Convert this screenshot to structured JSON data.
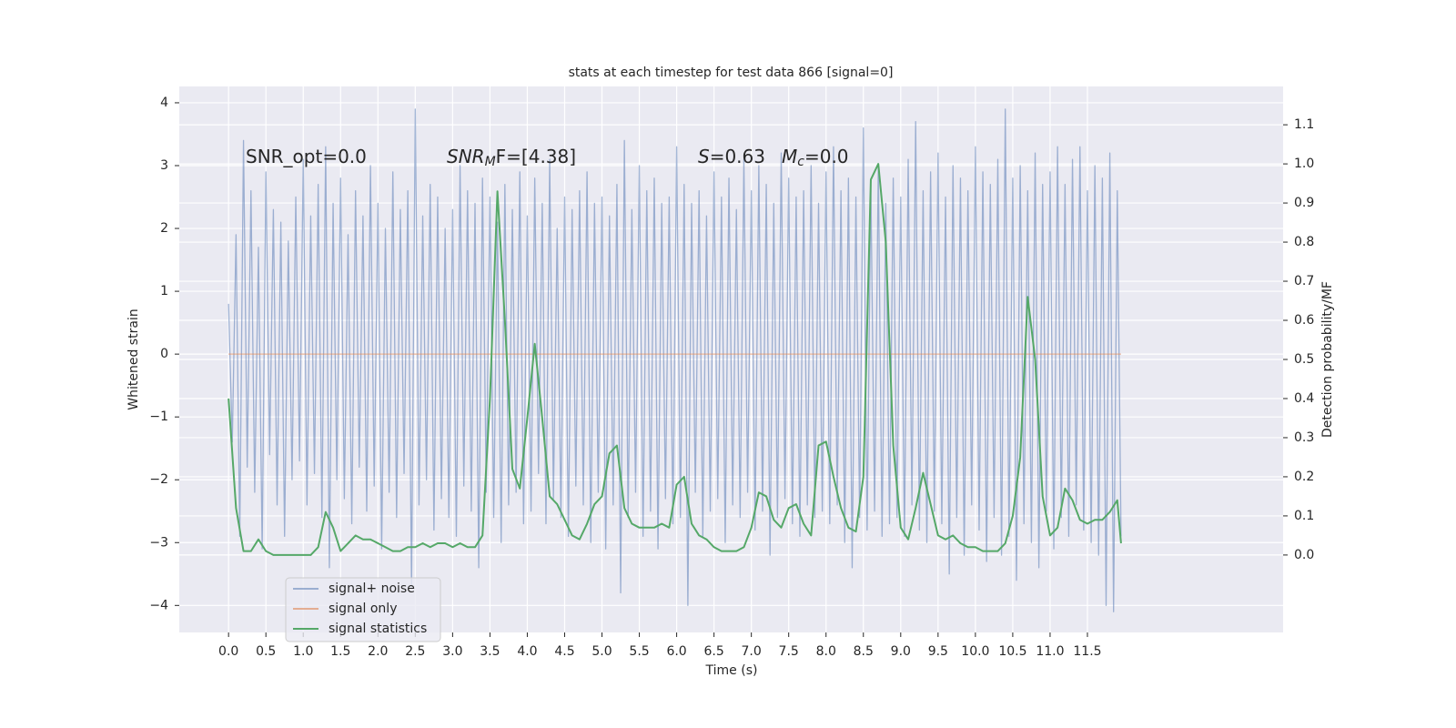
{
  "chart_data": {
    "type": "line",
    "title": "stats at each timestep for test data 866 [signal=0]",
    "xlabel": "Time (s)",
    "ylabel": "Whitened strain",
    "y2label": "Detection probability/MF",
    "xlim": [
      -0.66,
      14.12
    ],
    "ylim": [
      -4.43,
      4.26
    ],
    "y2lim": [
      -0.198,
      1.198
    ],
    "grid": true,
    "background": "#eaeaf2",
    "legend": "lower left",
    "xticks": [
      {
        "value": 0,
        "label": "0.0"
      },
      {
        "value": 0.5,
        "label": "0.5"
      },
      {
        "value": 1,
        "label": "1.0"
      },
      {
        "value": 1.5,
        "label": "1.5"
      },
      {
        "value": 2,
        "label": "2.0"
      },
      {
        "value": 2.5,
        "label": "2.5"
      },
      {
        "value": 3,
        "label": "3.0"
      },
      {
        "value": 3.5,
        "label": "3.5"
      },
      {
        "value": 4,
        "label": "4.0"
      },
      {
        "value": 4.5,
        "label": "4.5"
      },
      {
        "value": 5,
        "label": "5.0"
      },
      {
        "value": 5.5,
        "label": "5.5"
      },
      {
        "value": 6,
        "label": "6.0"
      },
      {
        "value": 6.5,
        "label": "6.5"
      },
      {
        "value": 7,
        "label": "7.0"
      },
      {
        "value": 7.5,
        "label": "7.5"
      },
      {
        "value": 8,
        "label": "8.0"
      },
      {
        "value": 8.5,
        "label": "8.5"
      },
      {
        "value": 9,
        "label": "9.0"
      },
      {
        "value": 9.5,
        "label": "9.5"
      },
      {
        "value": 10,
        "label": "10.0"
      },
      {
        "value": 10.5,
        "label": "10.5"
      },
      {
        "value": 11,
        "label": "11.0"
      },
      {
        "value": 11.5,
        "label": "11.5"
      }
    ],
    "yticks": [
      {
        "value": -4,
        "label": "−4"
      },
      {
        "value": -3,
        "label": "−3"
      },
      {
        "value": -2,
        "label": "−2"
      },
      {
        "value": -1,
        "label": "−1"
      },
      0,
      1,
      2,
      3,
      4
    ],
    "y2ticks": [
      {
        "value": 0,
        "label": "0.0"
      },
      {
        "value": 0.1,
        "label": "0.1"
      },
      {
        "value": 0.2,
        "label": "0.2"
      },
      {
        "value": 0.3,
        "label": "0.3"
      },
      {
        "value": 0.4,
        "label": "0.4"
      },
      {
        "value": 0.5,
        "label": "0.5"
      },
      {
        "value": 0.6,
        "label": "0.6"
      },
      {
        "value": 0.7,
        "label": "0.7"
      },
      {
        "value": 0.8,
        "label": "0.8"
      },
      {
        "value": 0.9,
        "label": "0.9"
      },
      {
        "value": 1,
        "label": "1.0"
      },
      {
        "value": 1.1,
        "label": "1.1"
      }
    ],
    "annotations": [
      {
        "text": "SNR_opt=0.0"
      },
      {
        "base": "SNR",
        "sub": "M",
        "rest": "F=[4.38]"
      },
      {
        "base": "S",
        "rest": "=0.63"
      },
      {
        "base": "M",
        "sub": "c",
        "rest": "=0.0"
      }
    ],
    "series": [
      {
        "name": "signal+ noise",
        "color": "#4c72b0",
        "opacity": 0.5,
        "x": [
          0,
          0.05,
          0.1,
          0.15,
          0.2,
          0.25,
          0.3,
          0.35,
          0.4,
          0.45,
          0.5,
          0.55,
          0.6,
          0.65,
          0.7,
          0.75,
          0.8,
          0.85,
          0.9,
          0.95,
          1,
          1.05,
          1.1,
          1.15,
          1.2,
          1.25,
          1.3,
          1.35,
          1.4,
          1.45,
          1.5,
          1.55,
          1.6,
          1.65,
          1.7,
          1.75,
          1.8,
          1.85,
          1.9,
          1.95,
          2,
          2.05,
          2.1,
          2.15,
          2.2,
          2.25,
          2.3,
          2.35,
          2.4,
          2.45,
          2.5,
          2.55,
          2.6,
          2.65,
          2.7,
          2.75,
          2.8,
          2.85,
          2.9,
          2.95,
          3,
          3.05,
          3.1,
          3.15,
          3.2,
          3.25,
          3.3,
          3.35,
          3.4,
          3.45,
          3.5,
          3.55,
          3.6,
          3.65,
          3.7,
          3.75,
          3.8,
          3.85,
          3.9,
          3.95,
          4,
          4.05,
          4.1,
          4.15,
          4.2,
          4.25,
          4.3,
          4.35,
          4.4,
          4.45,
          4.5,
          4.55,
          4.6,
          4.65,
          4.7,
          4.75,
          4.8,
          4.85,
          4.9,
          4.95,
          5,
          5.05,
          5.1,
          5.15,
          5.2,
          5.25,
          5.3,
          5.35,
          5.4,
          5.45,
          5.5,
          5.55,
          5.6,
          5.65,
          5.7,
          5.75,
          5.8,
          5.85,
          5.9,
          5.95,
          6,
          6.05,
          6.1,
          6.15,
          6.2,
          6.25,
          6.3,
          6.35,
          6.4,
          6.45,
          6.5,
          6.55,
          6.6,
          6.65,
          6.7,
          6.75,
          6.8,
          6.85,
          6.9,
          6.95,
          7,
          7.05,
          7.1,
          7.15,
          7.2,
          7.25,
          7.3,
          7.35,
          7.4,
          7.45,
          7.5,
          7.55,
          7.6,
          7.65,
          7.7,
          7.75,
          7.8,
          7.85,
          7.9,
          7.95,
          8,
          8.05,
          8.1,
          8.15,
          8.2,
          8.25,
          8.3,
          8.35,
          8.4,
          8.45,
          8.5,
          8.55,
          8.6,
          8.65,
          8.7,
          8.75,
          8.8,
          8.85,
          8.9,
          8.95,
          9,
          9.05,
          9.1,
          9.15,
          9.2,
          9.25,
          9.3,
          9.35,
          9.4,
          9.45,
          9.5,
          9.55,
          9.6,
          9.65,
          9.7,
          9.75,
          9.8,
          9.85,
          9.9,
          9.95,
          10,
          10.05,
          10.1,
          10.15,
          10.2,
          10.25,
          10.3,
          10.35,
          10.4,
          10.45,
          10.5,
          10.55,
          10.6,
          10.65,
          10.7,
          10.75,
          10.8,
          10.85,
          10.9,
          10.95,
          11,
          11.05,
          11.1,
          11.15,
          11.2,
          11.25,
          11.3,
          11.35,
          11.4,
          11.45,
          11.5,
          11.55,
          11.6,
          11.65,
          11.7,
          11.75,
          11.8,
          11.85,
          11.9,
          11.95
        ],
        "values": [
          0.8,
          -1.4,
          1.9,
          -2.9,
          3.4,
          -1.8,
          2.6,
          -2.2,
          1.7,
          -3.1,
          2.9,
          -1.6,
          2.3,
          -2.4,
          2.1,
          -2.9,
          1.8,
          -2.0,
          2.5,
          -1.7,
          3.1,
          -2.4,
          2.2,
          -1.9,
          2.7,
          -2.6,
          3.3,
          -3.4,
          2.4,
          -2.0,
          2.8,
          -2.3,
          1.9,
          -2.7,
          2.6,
          -1.8,
          2.2,
          -2.5,
          3.0,
          -2.1,
          2.4,
          -3.1,
          2.0,
          -2.2,
          2.9,
          -2.6,
          2.3,
          -1.9,
          2.6,
          -3.7,
          3.9,
          -2.4,
          2.2,
          -2.0,
          2.7,
          -2.8,
          2.5,
          -2.3,
          2.0,
          -2.6,
          2.3,
          -2.9,
          3.0,
          -2.1,
          2.6,
          -2.5,
          2.4,
          -3.4,
          2.8,
          -2.2,
          2.5,
          -2.6,
          2.1,
          -3.0,
          2.7,
          -2.4,
          2.3,
          -2.2,
          2.9,
          -2.7,
          2.2,
          -2.5,
          2.8,
          -1.9,
          2.4,
          -2.7,
          3.1,
          -2.3,
          2.0,
          -2.6,
          2.5,
          -2.9,
          2.3,
          -2.1,
          2.6,
          -2.4,
          2.9,
          -3.0,
          2.4,
          -2.2,
          2.5,
          -3.1,
          2.2,
          -2.4,
          2.7,
          -3.8,
          3.4,
          -2.6,
          2.3,
          -2.2,
          3.0,
          -2.9,
          2.6,
          -2.5,
          2.8,
          -3.1,
          2.4,
          -2.3,
          2.5,
          -2.7,
          3.3,
          -2.6,
          2.7,
          -4.0,
          2.4,
          -2.2,
          2.6,
          -2.9,
          2.2,
          -2.5,
          2.9,
          -2.3,
          2.5,
          -3.0,
          2.8,
          -2.4,
          2.3,
          -2.6,
          3.1,
          -2.2,
          2.6,
          -2.8,
          3.0,
          -2.5,
          2.7,
          -3.2,
          2.4,
          -2.6,
          3.2,
          -2.3,
          2.8,
          -2.7,
          2.5,
          -2.9,
          2.6,
          -2.4,
          3.0,
          -2.6,
          2.4,
          -2.5,
          2.9,
          -2.7,
          3.3,
          -2.4,
          2.6,
          -3.0,
          2.8,
          -3.4,
          2.5,
          -2.6,
          3.6,
          -2.8,
          2.7,
          -2.5,
          3.0,
          -2.9,
          2.4,
          -2.7,
          2.8,
          -2.6,
          2.5,
          -2.9,
          3.1,
          -2.4,
          3.7,
          -2.8,
          2.6,
          -3.0,
          2.9,
          -2.5,
          3.2,
          -2.7,
          2.5,
          -3.5,
          3.0,
          -2.6,
          2.8,
          -3.2,
          2.6,
          -2.4,
          3.3,
          -2.8,
          2.9,
          -3.3,
          2.7,
          -2.6,
          3.1,
          -3.2,
          3.9,
          -2.9,
          2.8,
          -3.6,
          3.0,
          -2.7,
          2.6,
          -3.0,
          3.2,
          -3.4,
          2.7,
          -2.5,
          2.9,
          -3.1,
          3.3,
          -2.6,
          2.7,
          -2.9,
          3.1,
          -2.4,
          3.3,
          -2.8,
          2.6,
          -3.0,
          3.0,
          -3.2,
          2.8,
          -4.0,
          3.2,
          -4.1,
          2.6,
          -2.9
        ]
      },
      {
        "name": "signal only",
        "color": "#dd8452",
        "opacity": 0.6,
        "x": [
          0,
          11.95
        ],
        "values": [
          0,
          0
        ]
      },
      {
        "name": "signal statistics",
        "color": "#55a868",
        "opacity": 1,
        "axis": "y2",
        "x": [
          0,
          0.1,
          0.2,
          0.3,
          0.4,
          0.5,
          0.6,
          0.7,
          0.8,
          0.9,
          1,
          1.1,
          1.2,
          1.3,
          1.4,
          1.5,
          1.6,
          1.7,
          1.8,
          1.9,
          2,
          2.1,
          2.2,
          2.3,
          2.4,
          2.5,
          2.6,
          2.7,
          2.8,
          2.9,
          3,
          3.1,
          3.2,
          3.3,
          3.4,
          3.5,
          3.6,
          3.7,
          3.8,
          3.9,
          4,
          4.1,
          4.2,
          4.3,
          4.4,
          4.5,
          4.6,
          4.7,
          4.8,
          4.9,
          5,
          5.1,
          5.2,
          5.3,
          5.4,
          5.5,
          5.6,
          5.7,
          5.8,
          5.9,
          6,
          6.1,
          6.2,
          6.3,
          6.4,
          6.5,
          6.6,
          6.7,
          6.8,
          6.9,
          7,
          7.1,
          7.2,
          7.3,
          7.4,
          7.5,
          7.6,
          7.7,
          7.8,
          7.9,
          8,
          8.1,
          8.2,
          8.3,
          8.4,
          8.5,
          8.6,
          8.7,
          8.8,
          8.9,
          9,
          9.1,
          9.2,
          9.3,
          9.4,
          9.5,
          9.6,
          9.7,
          9.8,
          9.9,
          10,
          10.1,
          10.2,
          10.3,
          10.4,
          10.5,
          10.6,
          10.7,
          10.8,
          10.9,
          11,
          11.1,
          11.2,
          11.3,
          11.4,
          11.5,
          11.6,
          11.7,
          11.8,
          11.9,
          11.95
        ],
        "values": [
          0.4,
          0.12,
          0.01,
          0.01,
          0.04,
          0.01,
          0.0,
          0.0,
          0.0,
          0.0,
          0.0,
          0.0,
          0.02,
          0.11,
          0.07,
          0.01,
          0.03,
          0.05,
          0.04,
          0.04,
          0.03,
          0.02,
          0.01,
          0.01,
          0.02,
          0.02,
          0.03,
          0.02,
          0.03,
          0.03,
          0.02,
          0.03,
          0.02,
          0.02,
          0.05,
          0.4,
          0.93,
          0.6,
          0.22,
          0.17,
          0.35,
          0.54,
          0.35,
          0.15,
          0.13,
          0.09,
          0.05,
          0.04,
          0.08,
          0.13,
          0.15,
          0.26,
          0.28,
          0.12,
          0.08,
          0.07,
          0.07,
          0.07,
          0.08,
          0.07,
          0.18,
          0.2,
          0.08,
          0.05,
          0.04,
          0.02,
          0.01,
          0.01,
          0.01,
          0.02,
          0.07,
          0.16,
          0.15,
          0.09,
          0.07,
          0.12,
          0.13,
          0.08,
          0.05,
          0.28,
          0.29,
          0.2,
          0.12,
          0.07,
          0.06,
          0.2,
          0.96,
          1.0,
          0.8,
          0.28,
          0.07,
          0.04,
          0.12,
          0.21,
          0.13,
          0.05,
          0.04,
          0.05,
          0.03,
          0.02,
          0.02,
          0.01,
          0.01,
          0.01,
          0.03,
          0.1,
          0.25,
          0.66,
          0.5,
          0.15,
          0.05,
          0.07,
          0.17,
          0.14,
          0.09,
          0.08,
          0.09,
          0.09,
          0.11,
          0.14,
          0.03
        ]
      }
    ]
  }
}
